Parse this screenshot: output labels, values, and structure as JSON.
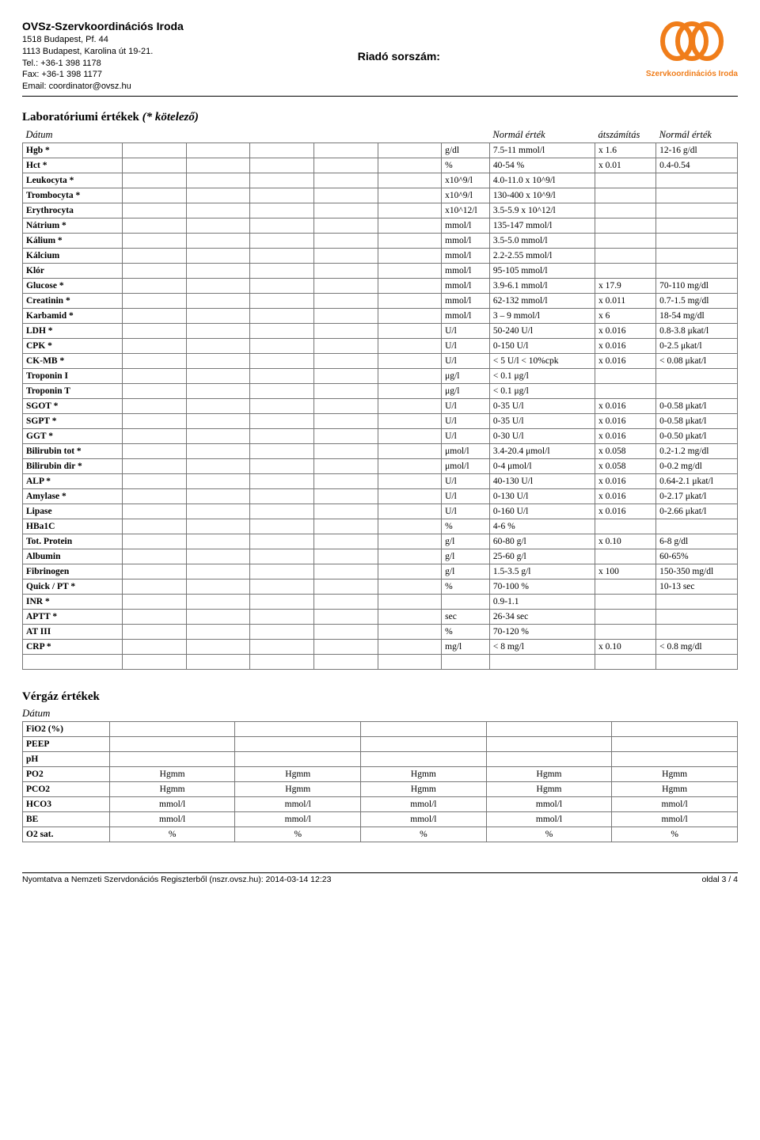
{
  "header": {
    "org_title": "OVSz-Szervkoordinációs Iroda",
    "addr1": "1518 Budapest, Pf. 44",
    "addr2": "1113 Budapest, Karolina út 19-21.",
    "tel": "Tel.: +36-1 398 1178",
    "fax": "Fax: +36-1 398 1177",
    "email": "Email: coordinator@ovsz.hu",
    "center": "Riadó sorszám:",
    "logo_label": "Szervkoordinációs Iroda",
    "logo_color": "#f07d1a"
  },
  "lab_section": {
    "title_main": "Laboratóriumi értékek ",
    "title_paren": "(* kötelező)",
    "date_label": "Dátum",
    "col_normal": "Normál érték",
    "col_conv": "átszámítás",
    "col_normal2": "Normál érték",
    "rows": [
      {
        "name": "Hgb *",
        "unit": "g/dl",
        "norm": "7.5-11 mmol/l",
        "conv": "x 1.6",
        "norm2": "12-16 g/dl"
      },
      {
        "name": "Hct *",
        "unit": "%",
        "norm": "40-54 %",
        "conv": "x 0.01",
        "norm2": "0.4-0.54"
      },
      {
        "name": "Leukocyta *",
        "unit": "x10^9/l",
        "norm": "4.0-11.0 x 10^9/l",
        "conv": "",
        "norm2": ""
      },
      {
        "name": "Trombocyta *",
        "unit": "x10^9/l",
        "norm": "130-400 x 10^9/l",
        "conv": "",
        "norm2": ""
      },
      {
        "name": "Erythrocyta",
        "unit": "x10^12/l",
        "norm": "3.5-5.9 x 10^12/l",
        "conv": "",
        "norm2": ""
      },
      {
        "name": "Nátrium *",
        "unit": "mmol/l",
        "norm": "135-147 mmol/l",
        "conv": "",
        "norm2": ""
      },
      {
        "name": "Kálium *",
        "unit": "mmol/l",
        "norm": "3.5-5.0 mmol/l",
        "conv": "",
        "norm2": ""
      },
      {
        "name": "Kálcium",
        "unit": "mmol/l",
        "norm": "2.2-2.55 mmol/l",
        "conv": "",
        "norm2": ""
      },
      {
        "name": "Klór",
        "unit": "mmol/l",
        "norm": "95-105 mmol/l",
        "conv": "",
        "norm2": ""
      },
      {
        "name": "Glucose *",
        "unit": "mmol/l",
        "norm": "3.9-6.1 mmol/l",
        "conv": "x 17.9",
        "norm2": "70-110 mg/dl"
      },
      {
        "name": "Creatinin *",
        "unit": "mmol/l",
        "norm": "62-132 mmol/l",
        "conv": "x 0.011",
        "norm2": "0.7-1.5 mg/dl"
      },
      {
        "name": "Karbamid *",
        "unit": "mmol/l",
        "norm": "3 – 9 mmol/l",
        "conv": "x 6",
        "norm2": "18-54 mg/dl"
      },
      {
        "name": "LDH *",
        "unit": "U/l",
        "norm": "50-240 U/l",
        "conv": "x 0.016",
        "norm2": "0.8-3.8 μkat/l"
      },
      {
        "name": "CPK *",
        "unit": "U/l",
        "norm": "0-150 U/l",
        "conv": "x 0.016",
        "norm2": "0-2.5 μkat/l"
      },
      {
        "name": "CK-MB *",
        "unit": "U/l",
        "norm": "< 5 U/l < 10%cpk",
        "conv": "x 0.016",
        "norm2": "< 0.08 μkat/l"
      },
      {
        "name": "Troponin I",
        "unit": "μg/l",
        "norm": "< 0.1 μg/l",
        "conv": "",
        "norm2": ""
      },
      {
        "name": "Troponin T",
        "unit": "μg/l",
        "norm": "< 0.1 μg/l",
        "conv": "",
        "norm2": ""
      },
      {
        "name": "SGOT *",
        "unit": "U/l",
        "norm": "0-35 U/l",
        "conv": "x 0.016",
        "norm2": "0-0.58 μkat/l"
      },
      {
        "name": "SGPT *",
        "unit": "U/l",
        "norm": "0-35 U/l",
        "conv": "x 0.016",
        "norm2": "0-0.58 μkat/l"
      },
      {
        "name": "GGT *",
        "unit": "U/l",
        "norm": "0-30 U/l",
        "conv": "x 0.016",
        "norm2": "0-0.50 μkat/l"
      },
      {
        "name": "Bilirubin tot *",
        "unit": "μmol/l",
        "norm": "3.4-20.4 μmol/l",
        "conv": "x 0.058",
        "norm2": "0.2-1.2 mg/dl"
      },
      {
        "name": "Bilirubin dir *",
        "unit": "μmol/l",
        "norm": "0-4 μmol/l",
        "conv": "x 0.058",
        "norm2": "0-0.2 mg/dl"
      },
      {
        "name": "ALP *",
        "unit": "U/l",
        "norm": "40-130 U/l",
        "conv": "x 0.016",
        "norm2": "0.64-2.1 μkat/l"
      },
      {
        "name": "Amylase *",
        "unit": "U/l",
        "norm": "0-130 U/l",
        "conv": "x 0.016",
        "norm2": "0-2.17 μkat/l"
      },
      {
        "name": "Lipase",
        "unit": "U/l",
        "norm": "0-160 U/l",
        "conv": "x 0.016",
        "norm2": "0-2.66 μkat/l"
      },
      {
        "name": "HBa1C",
        "unit": "%",
        "norm": "4-6 %",
        "conv": "",
        "norm2": ""
      },
      {
        "name": "Tot. Protein",
        "unit": "g/l",
        "norm": "60-80 g/l",
        "conv": "x 0.10",
        "norm2": "6-8 g/dl"
      },
      {
        "name": "Albumin",
        "unit": "g/l",
        "norm": "25-60 g/l",
        "conv": "",
        "norm2": "60-65%"
      },
      {
        "name": "Fibrinogen",
        "unit": "g/l",
        "norm": "1.5-3.5 g/l",
        "conv": "x 100",
        "norm2": "150-350 mg/dl"
      },
      {
        "name": "Quick / PT *",
        "unit": "%",
        "norm": "70-100 %",
        "conv": "",
        "norm2": "10-13 sec"
      },
      {
        "name": "INR *",
        "unit": "",
        "norm": "0.9-1.1",
        "conv": "",
        "norm2": ""
      },
      {
        "name": "APTT *",
        "unit": "sec",
        "norm": "26-34 sec",
        "conv": "",
        "norm2": ""
      },
      {
        "name": "AT III",
        "unit": "%",
        "norm": "70-120 %",
        "conv": "",
        "norm2": ""
      },
      {
        "name": "CRP *",
        "unit": "mg/l",
        "norm": "< 8 mg/l",
        "conv": "x 0.10",
        "norm2": "< 0.8 mg/dl"
      },
      {
        "name": "",
        "unit": "",
        "norm": "",
        "conv": "",
        "norm2": ""
      }
    ]
  },
  "gas_section": {
    "title": "Vérgáz értékek",
    "date_label": "Dátum",
    "rows": [
      {
        "name": "FiO2 (%)",
        "vals": [
          "",
          "",
          "",
          "",
          ""
        ]
      },
      {
        "name": "PEEP",
        "vals": [
          "",
          "",
          "",
          "",
          ""
        ]
      },
      {
        "name": "pH",
        "vals": [
          "",
          "",
          "",
          "",
          ""
        ]
      },
      {
        "name": "PO2",
        "vals": [
          "Hgmm",
          "Hgmm",
          "Hgmm",
          "Hgmm",
          "Hgmm"
        ]
      },
      {
        "name": "PCO2",
        "vals": [
          "Hgmm",
          "Hgmm",
          "Hgmm",
          "Hgmm",
          "Hgmm"
        ]
      },
      {
        "name": "HCO3",
        "vals": [
          "mmol/l",
          "mmol/l",
          "mmol/l",
          "mmol/l",
          "mmol/l"
        ]
      },
      {
        "name": "BE",
        "vals": [
          "mmol/l",
          "mmol/l",
          "mmol/l",
          "mmol/l",
          "mmol/l"
        ]
      },
      {
        "name": "O2 sat.",
        "vals": [
          "%",
          "%",
          "%",
          "%",
          "%"
        ]
      }
    ]
  },
  "footer": {
    "left": "Nyomtatva a Nemzeti Szervdonációs Regiszterből (nszr.ovsz.hu): 2014-03-14 12:23",
    "right": "oldal 3 / 4"
  }
}
